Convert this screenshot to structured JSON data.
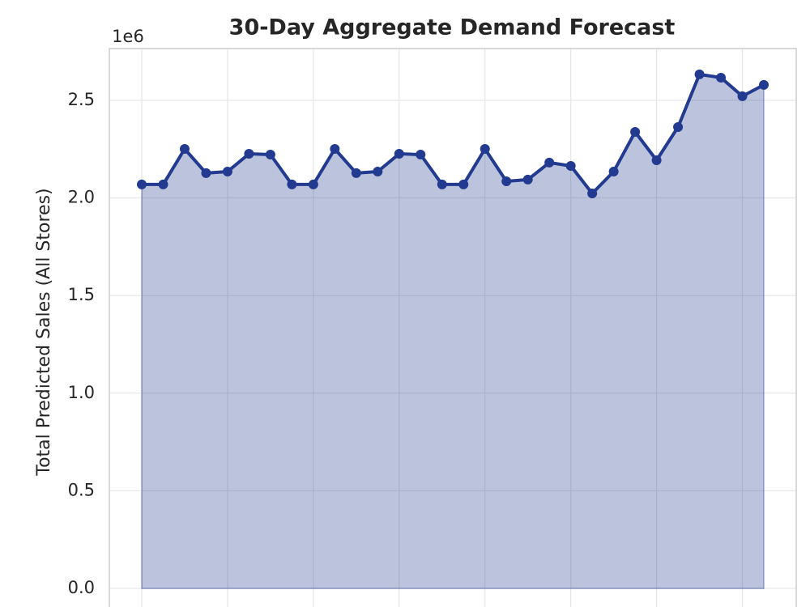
{
  "chart_data": {
    "type": "area",
    "title": "30-Day Aggregate Demand Forecast",
    "y_label": "Total Predicted Sales (All Stores)",
    "y_offset_label": "1e6",
    "categories": [
      null,
      null,
      null,
      null,
      null,
      null,
      null,
      null,
      null,
      null,
      null,
      null,
      null,
      null,
      null,
      null,
      null,
      null,
      null,
      null,
      null,
      null,
      null,
      null,
      null,
      null,
      null,
      null,
      null,
      null
    ],
    "series": [
      {
        "color": "#223a8f",
        "values": [
          2069000,
          2069000,
          2251000,
          2127000,
          2135000,
          2226000,
          2222000,
          2069000,
          2069000,
          2251000,
          2127000,
          2135000,
          2226000,
          2222000,
          2069000,
          2069000,
          2251000,
          2085000,
          2094000,
          2181000,
          2164000,
          2023000,
          2135000,
          2338000,
          2193000,
          2363000,
          2633000,
          2616000,
          2521000,
          2579000
        ]
      }
    ],
    "ylim": [
      -95000,
      2765000
    ],
    "yticks": [
      {
        "value": 0,
        "label": "0.0"
      },
      {
        "value": 500000,
        "label": "0.5"
      },
      {
        "value": 1000000,
        "label": "1.0"
      },
      {
        "value": 1500000,
        "label": "1.5"
      },
      {
        "value": 2000000,
        "label": "2.0"
      },
      {
        "value": 2500000,
        "label": "2.5"
      }
    ],
    "grid": true
  }
}
